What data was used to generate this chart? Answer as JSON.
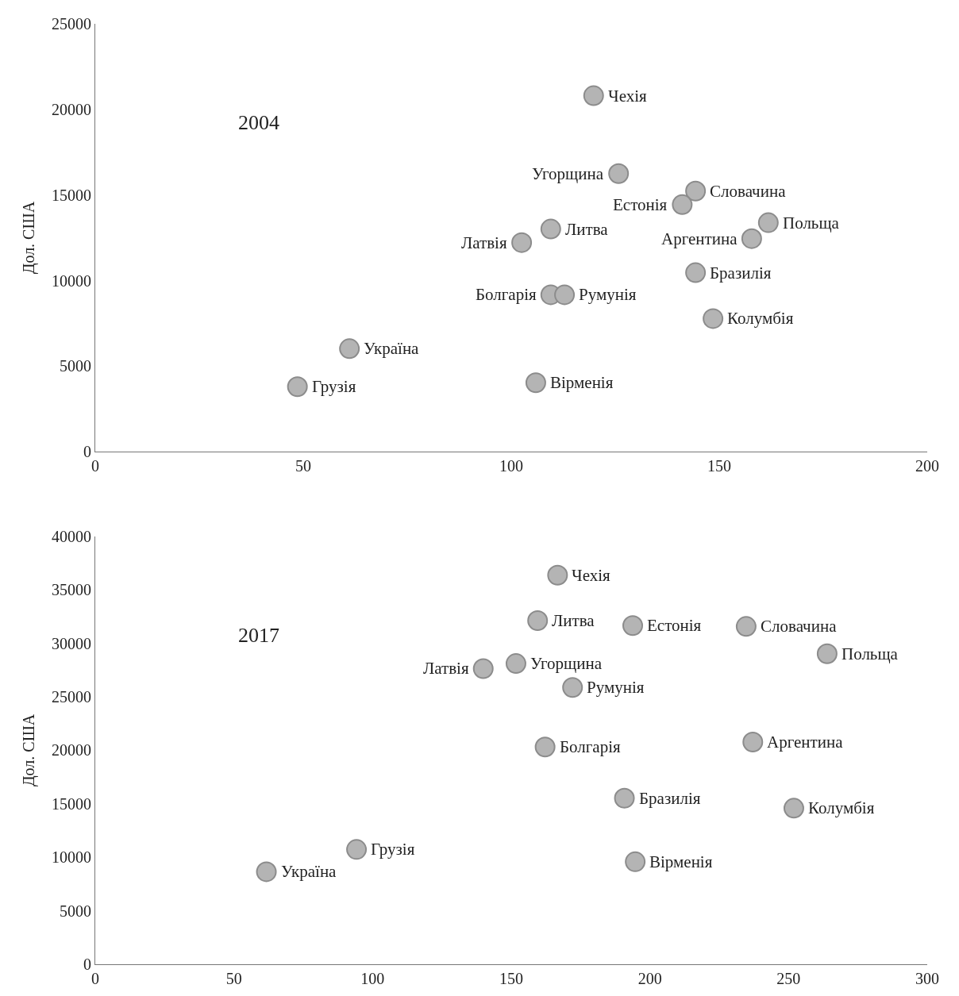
{
  "chart_data": [
    {
      "type": "scatter",
      "ylabel": "Дол. США",
      "annotations": [
        "2004"
      ],
      "xlim": [
        0,
        200
      ],
      "xticks": [
        0,
        50,
        100,
        150,
        200
      ],
      "ylim": [
        0,
        25000
      ],
      "yticks": [
        0,
        5000,
        10000,
        15000,
        20000,
        25000
      ],
      "grid": false,
      "marker": "circle",
      "series": [
        {
          "color": "#b4b4b4",
          "x": [
            119.8,
            125.8,
            144.3,
            141.1,
            161.8,
            157.8,
            109.5,
            102.5,
            144.3,
            109.5,
            112.8,
            148.5,
            61.1,
            48.6,
            105.9
          ],
          "values": [
            20800,
            16250,
            15230,
            14440,
            13380,
            12450,
            13010,
            12220,
            10460,
            9170,
            9170,
            7780,
            6020,
            3800,
            4030
          ],
          "value_labels": [
            "Чехія",
            "Угорщина",
            "Словачина",
            "Естонія",
            "Польща",
            "Аргентина",
            "Литва",
            "Латвія",
            "Бразилія",
            "Болгарія",
            "Румунія",
            "Колумбія",
            "Україна",
            "Грузія",
            "Вірменія"
          ]
        }
      ]
    },
    {
      "type": "scatter",
      "ylabel": "Дол. США",
      "annotations": [
        "2017"
      ],
      "xlim": [
        0,
        300
      ],
      "xticks": [
        0,
        50,
        100,
        150,
        200,
        250,
        300
      ],
      "ylim": [
        0,
        40000
      ],
      "yticks": [
        0,
        5000,
        10000,
        15000,
        20000,
        25000,
        30000,
        35000,
        40000
      ],
      "grid": false,
      "marker": "circle",
      "series": [
        {
          "color": "#b4b4b4",
          "x": [
            166.7,
            159.5,
            193.8,
            234.7,
            263.9,
            151.7,
            139.9,
            172.1,
            162.2,
            237.1,
            190.8,
            251.9,
            94.2,
            61.7,
            194.7
          ],
          "values": [
            36370,
            32120,
            31660,
            31580,
            29030,
            28110,
            27640,
            25870,
            20310,
            20770,
            15520,
            14590,
            10730,
            8650,
            9580
          ],
          "value_labels": [
            "Чехія",
            "Литва",
            "Естонія",
            "Словачина",
            "Польща",
            "Угорщина",
            "Латвія",
            "Румунія",
            "Болгарія",
            "Аргентина",
            "Бразилія",
            "Колумбія",
            "Грузія",
            "Україна",
            "Вірменія"
          ]
        }
      ]
    }
  ]
}
